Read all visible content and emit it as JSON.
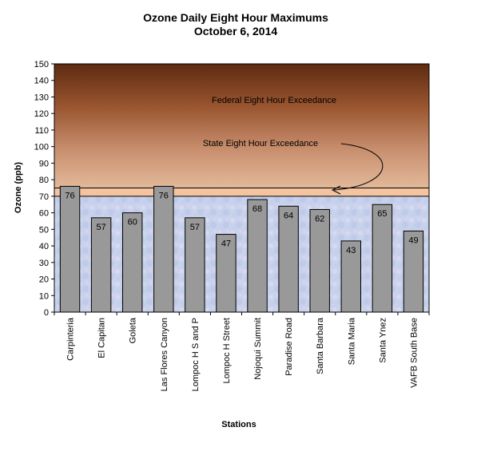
{
  "chart_data": {
    "type": "bar",
    "title": "Ozone Daily Eight Hour Maximums",
    "subtitle": "October 6, 2014",
    "xlabel": "Stations",
    "ylabel": "Ozone (ppb)",
    "ylim": [
      0,
      150
    ],
    "yticks": [
      0,
      10,
      20,
      30,
      40,
      50,
      60,
      70,
      80,
      90,
      100,
      110,
      120,
      130,
      140,
      150
    ],
    "categories": [
      "Carpinteria",
      "El Capitan",
      "Goleta",
      "Las Flores Canyon",
      "Lompoc H S and P",
      "Lompoc H Street",
      "Nojoqui Summit",
      "Paradise Road",
      "Santa Barbara",
      "Santa Maria",
      "Santa Ynez",
      "VAFB South Base"
    ],
    "values": [
      76,
      57,
      60,
      76,
      57,
      47,
      68,
      64,
      62,
      43,
      65,
      49
    ],
    "grid": false,
    "legend": "none",
    "annotations": {
      "federal": "Federal Eight Hour Exceedance",
      "state": "State Eight Hour Exceedance"
    },
    "thresholds": {
      "state_ppb": 70,
      "federal_ppb": 75
    },
    "colors": {
      "bar_fill": "#999999",
      "bar_stroke": "#000000",
      "upper_band_top": "#6b3214",
      "upper_band_bottom": "#dcb090",
      "state_band": "#f4c4a0",
      "lower_band": "#c8d2ec"
    }
  }
}
